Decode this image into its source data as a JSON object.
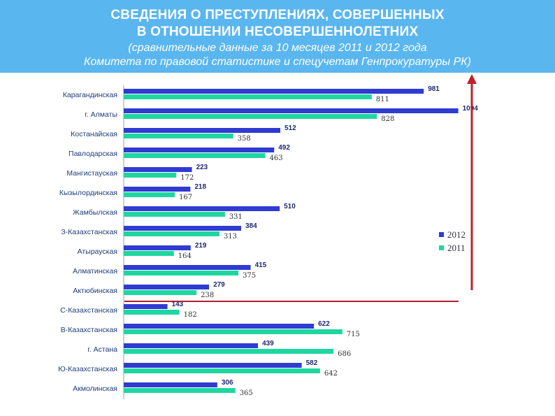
{
  "header": {
    "title_line1": "СВЕДЕНИЯ О ПРЕСТУПЛЕНИЯХ, СОВЕРШЕННЫХ",
    "title_line2": "В ОТНОШЕНИИ НЕСОВЕРШЕННОЛЕТНИХ",
    "subtitle_line1": "(сравнительные данные за 10 месяцев 2011 и 2012 года",
    "subtitle_line2": "Комитета по правовой статистике и спецучетам Генпрокуратуры РК)"
  },
  "colors": {
    "banner": "#5ab6ef",
    "series_2012": "#2f3bd1",
    "series_2011": "#1fd6a0",
    "arrow": "#c0202a",
    "divider": "#b02030"
  },
  "chart_data": {
    "type": "bar",
    "orientation": "horizontal",
    "categories": [
      "Карагандинская",
      "г. Алматы",
      "Костанайская",
      "Павлодарская",
      "Мангистауская",
      "Кызылординская",
      "Жамбылская",
      "З-Казахстанская",
      "Атырауская",
      "Алматинская",
      "Актюбинская",
      "С-Казахстанская",
      "В-Казахстанская",
      "г. Астана",
      "Ю-Казахстанская",
      "Акмолинская"
    ],
    "series": [
      {
        "name": "2012",
        "values": [
          981,
          1094,
          512,
          492,
          223,
          218,
          510,
          384,
          219,
          415,
          279,
          143,
          622,
          439,
          582,
          306
        ]
      },
      {
        "name": "2011",
        "values": [
          811,
          828,
          358,
          463,
          172,
          167,
          331,
          313,
          164,
          375,
          238,
          182,
          715,
          686,
          642,
          365
        ]
      }
    ],
    "xlim": [
      0,
      1100
    ],
    "legend_position": "right",
    "grid": false
  }
}
